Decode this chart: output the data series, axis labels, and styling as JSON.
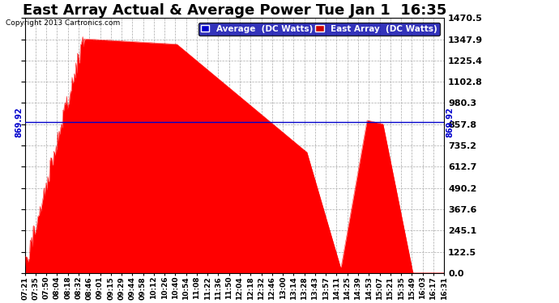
{
  "title": "East Array Actual & Average Power Tue Jan 1  16:35",
  "copyright": "Copyright 2013 Cartronics.com",
  "ytick_labels": [
    "1470.5",
    "1347.9",
    "1225.4",
    "1102.8",
    "980.3",
    "857.8",
    "735.2",
    "612.7",
    "490.2",
    "367.6",
    "245.1",
    "122.5",
    "0.0"
  ],
  "yticks": [
    1470.5,
    1347.9,
    1225.4,
    1102.8,
    980.3,
    857.8,
    735.2,
    612.7,
    490.2,
    367.6,
    245.1,
    122.5,
    0.0
  ],
  "ymin": 0.0,
  "ymax": 1470.5,
  "average_line": 869.92,
  "average_label": "869.92",
  "legend_avg_color": "#0000cc",
  "legend_avg_label": "Average  (DC Watts)",
  "legend_east_color": "#cc0000",
  "legend_east_label": "East Array  (DC Watts)",
  "fill_color": "#ff0000",
  "background_color": "#ffffff",
  "plot_background": "#ffffff",
  "grid_color": "#aaaaaa",
  "title_fontsize": 13,
  "avg_line_color": "#0000cc",
  "xtick_labels": [
    "07:21",
    "07:35",
    "07:50",
    "08:04",
    "08:18",
    "08:32",
    "08:46",
    "09:01",
    "09:15",
    "09:29",
    "09:44",
    "09:58",
    "10:12",
    "10:26",
    "10:40",
    "10:54",
    "11:08",
    "11:22",
    "11:36",
    "11:50",
    "12:04",
    "12:18",
    "12:32",
    "12:46",
    "13:00",
    "13:14",
    "13:28",
    "13:43",
    "13:57",
    "14:11",
    "14:25",
    "14:39",
    "14:53",
    "15:07",
    "15:21",
    "15:35",
    "15:49",
    "16:03",
    "16:17",
    "16:31"
  ]
}
